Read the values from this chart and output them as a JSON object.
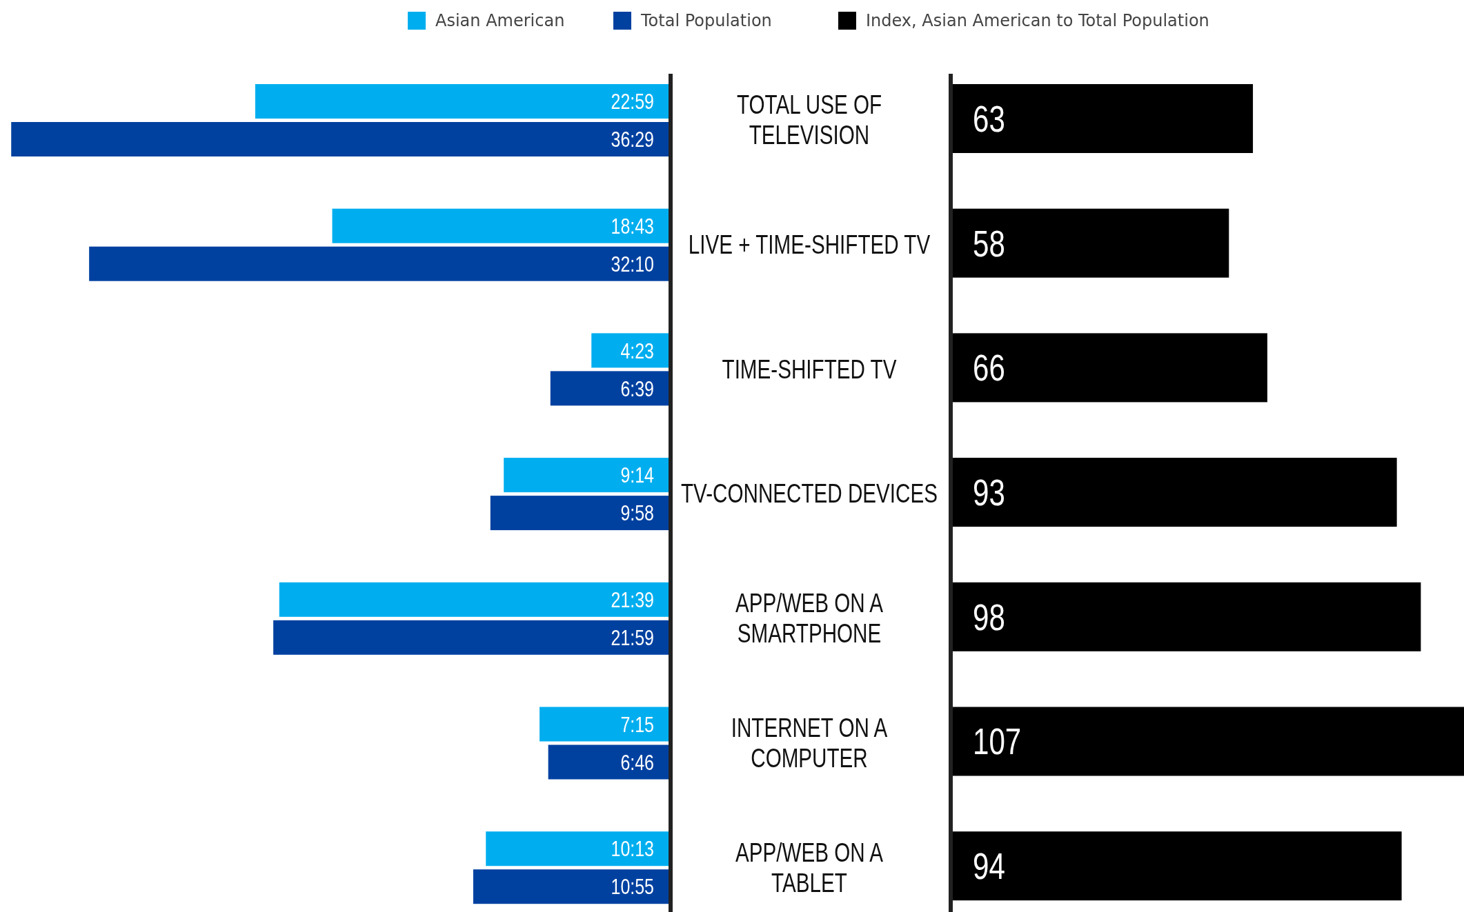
{
  "chart_data": [
    {
      "type": "bar",
      "orientation": "horizontal",
      "categories": [
        "TOTAL USE OF\nTELEVISION",
        "LIVE + TIME-SHIFTED TV",
        "TIME-SHIFTED TV",
        "TV-CONNECTED DEVICES",
        "APP/WEB ON A\nSMARTPHONE",
        "INTERNET ON A\nCOMPUTER",
        "APP/WEB ON A\nTABLET"
      ],
      "xlim": [
        37.1,
        0
      ],
      "tick_labels": "y",
      "legend": "top",
      "series": [
        {
          "name": "Asian American",
          "color": "#00aeef",
          "values": [
            22.98,
            18.72,
            4.38,
            9.23,
            21.65,
            7.25,
            10.22
          ],
          "value_labels": [
            "22:59",
            "18:43",
            "4:23",
            "9:14",
            "21:39",
            "7:15",
            "10:13"
          ]
        },
        {
          "name": "Total Population",
          "color": "#0041a0",
          "values": [
            36.48,
            32.17,
            6.65,
            9.97,
            21.98,
            6.77,
            10.92
          ],
          "value_labels": [
            "36:29",
            "32:10",
            "6:39",
            "9:58",
            "21:59",
            "6:46",
            "10:55"
          ]
        }
      ]
    },
    {
      "type": "bar",
      "orientation": "horizontal",
      "categories": [
        null,
        null,
        null,
        null,
        null,
        null,
        null
      ],
      "xlim": [
        0,
        107
      ],
      "tick_labels": false,
      "legend": "top",
      "data_labels": true,
      "series": [
        {
          "name": "Index, Asian American to Total Population",
          "color": "#000000",
          "values": [
            63,
            58,
            66,
            93,
            98,
            107,
            94
          ]
        }
      ]
    }
  ]
}
